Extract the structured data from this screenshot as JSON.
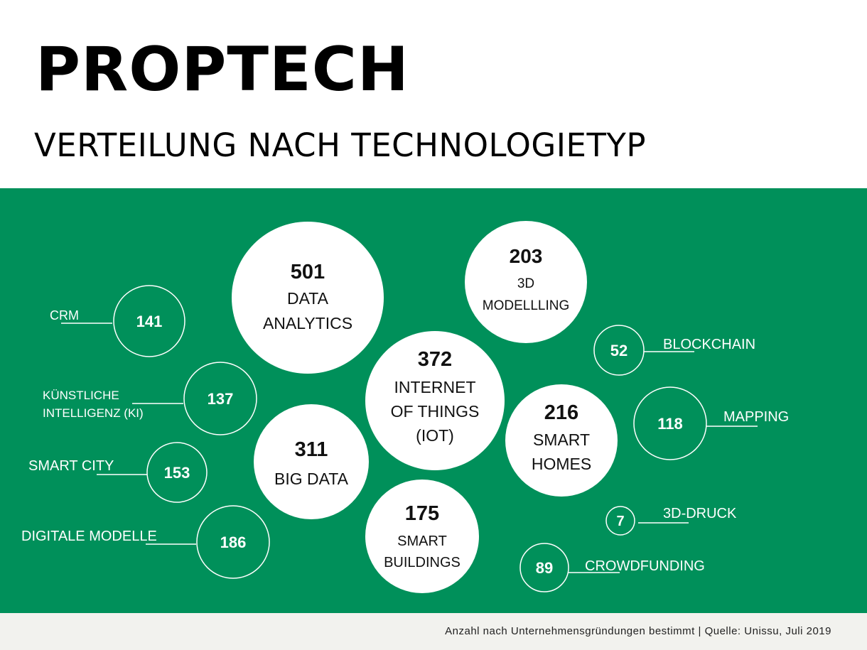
{
  "header": {
    "title": "PROPTECH",
    "subtitle": "VERTEILUNG NACH TECHNOLOGIETYP"
  },
  "footer": {
    "source": "Anzahl nach Unternehmensgründungen bestimmt | Quelle: Unissu, Juli 2019"
  },
  "colors": {
    "panel": "#00905a",
    "bubble_fill": "#ffffff",
    "outline": "#ffffff"
  },
  "chart_data": {
    "type": "bubble",
    "title": "PROPTECH",
    "subtitle": "VERTEILUNG NACH TECHNOLOGIETYP",
    "categories": [
      "DATA ANALYTICS",
      "INTERNET OF THINGS (IOT)",
      "BIG DATA",
      "SMART HOMES",
      "3D MODELLLING",
      "DIGITALE MODELLE",
      "SMART BUILDINGS",
      "SMART CITY",
      "CRM",
      "KÜNSTLICHE INTELLIGENZ (KI)",
      "MAPPING",
      "CROWDFUNDING",
      "BLOCKCHAIN",
      "3D-DRUCK"
    ],
    "values": [
      501,
      372,
      311,
      216,
      203,
      186,
      175,
      153,
      141,
      137,
      118,
      89,
      52,
      7
    ],
    "items": [
      {
        "label_lines": [
          "DATA",
          "ANALYTICS"
        ],
        "value": "501",
        "style": "filled"
      },
      {
        "label_lines": [
          "3D",
          "MODELLLING"
        ],
        "value": "203",
        "style": "filled"
      },
      {
        "label_lines": [
          "INTERNET",
          "OF THINGS",
          "(IOT)"
        ],
        "value": "372",
        "style": "filled"
      },
      {
        "label_lines": [
          "BIG DATA"
        ],
        "value": "311",
        "style": "filled"
      },
      {
        "label_lines": [
          "SMART",
          "HOMES"
        ],
        "value": "216",
        "style": "filled"
      },
      {
        "label_lines": [
          "SMART",
          "BUILDINGS"
        ],
        "value": "175",
        "style": "filled"
      },
      {
        "label_lines": [
          "CRM"
        ],
        "value": "141",
        "style": "outline"
      },
      {
        "label_lines": [
          "KÜNSTLICHE",
          "INTELLIGENZ (KI)"
        ],
        "value": "137",
        "style": "outline"
      },
      {
        "label_lines": [
          "SMART CITY"
        ],
        "value": "153",
        "style": "outline"
      },
      {
        "label_lines": [
          "DIGITALE MODELLE"
        ],
        "value": "186",
        "style": "outline"
      },
      {
        "label_lines": [
          "BLOCKCHAIN"
        ],
        "value": "52",
        "style": "outline"
      },
      {
        "label_lines": [
          "MAPPING"
        ],
        "value": "118",
        "style": "outline"
      },
      {
        "label_lines": [
          "3D-DRUCK"
        ],
        "value": "7",
        "style": "outline"
      },
      {
        "label_lines": [
          "CROWDFUNDING"
        ],
        "value": "89",
        "style": "outline"
      }
    ]
  }
}
